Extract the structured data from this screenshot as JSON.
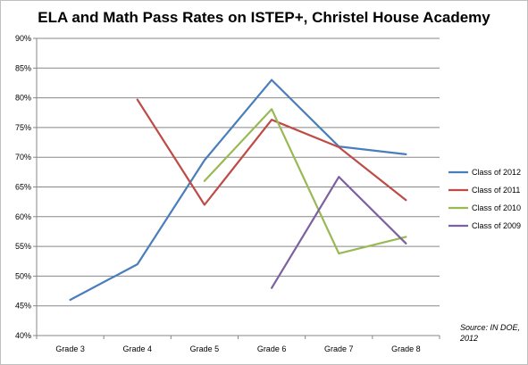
{
  "chart_data": {
    "type": "line",
    "title": "ELA and Math Pass Rates on ISTEP+, Christel House Academy",
    "xlabel": "",
    "ylabel": "",
    "categories": [
      "Grade 3",
      "Grade 4",
      "Grade 5",
      "Grade 6",
      "Grade 7",
      "Grade 8"
    ],
    "y_ticks": [
      "40%",
      "45%",
      "50%",
      "55%",
      "60%",
      "65%",
      "70%",
      "75%",
      "80%",
      "85%",
      "90%"
    ],
    "ylim": [
      40,
      90
    ],
    "grid": true,
    "legend_position": "right",
    "series": [
      {
        "name": "Class of 2012",
        "color": "#4a7ebb",
        "values": [
          46.0,
          52.0,
          69.5,
          83.0,
          71.8,
          70.5
        ]
      },
      {
        "name": "Class of 2011",
        "color": "#be4b48",
        "values": [
          null,
          79.7,
          62.0,
          76.3,
          71.7,
          62.8
        ]
      },
      {
        "name": "Class of 2010",
        "color": "#98b954",
        "values": [
          null,
          null,
          66.0,
          78.1,
          53.8,
          56.6
        ]
      },
      {
        "name": "Class of 2009",
        "color": "#7d60a0",
        "values": [
          null,
          null,
          null,
          48.0,
          66.7,
          55.5
        ]
      }
    ],
    "source_note": "Source: IN DOE, 2012"
  }
}
